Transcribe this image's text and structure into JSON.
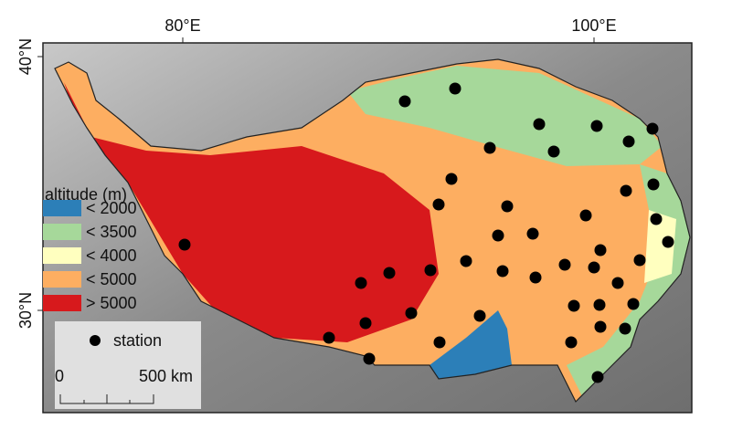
{
  "axes": {
    "x_ticks": [
      "80°E",
      "100°E"
    ],
    "y_ticks": [
      "40°N",
      "30°N"
    ]
  },
  "legend": {
    "title": "altitude (m)",
    "items": [
      {
        "label": "< 2000",
        "color": "#2c7fb8"
      },
      {
        "label": "< 3500",
        "color": "#a6d89a"
      },
      {
        "label": "< 4000",
        "color": "#ffffbf"
      },
      {
        "label": "< 5000",
        "color": "#fdae61"
      },
      {
        "label": "> 5000",
        "color": "#d7191c"
      }
    ]
  },
  "station_legend": {
    "label": "station"
  },
  "scale_bar": {
    "labels": [
      "0",
      "500 km"
    ]
  }
}
